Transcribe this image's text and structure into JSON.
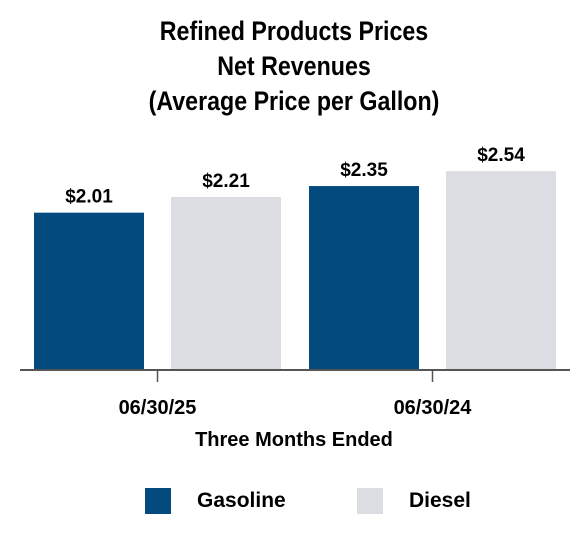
{
  "title_lines": [
    "Refined Products Prices",
    "Net Revenues",
    "(Average Price per Gallon)"
  ],
  "colors": {
    "gasoline": "#034a7f",
    "diesel": "#dcdde3",
    "axis": "#555555"
  },
  "chart_data": {
    "type": "bar",
    "title": "Refined Products Prices Net Revenues (Average Price per Gallon)",
    "categories": [
      "06/30/25",
      "06/30/24"
    ],
    "xlabel": "Three Months Ended",
    "ylabel": "",
    "ylim": [
      0,
      2.9
    ],
    "grid": false,
    "legend": "bottom",
    "series": [
      {
        "name": "Gasoline",
        "values": [
          2.01,
          2.35
        ],
        "labels": [
          "$2.01",
          "$2.35"
        ]
      },
      {
        "name": "Diesel",
        "values": [
          2.21,
          2.54
        ],
        "labels": [
          "$2.21",
          "$2.54"
        ]
      }
    ]
  }
}
